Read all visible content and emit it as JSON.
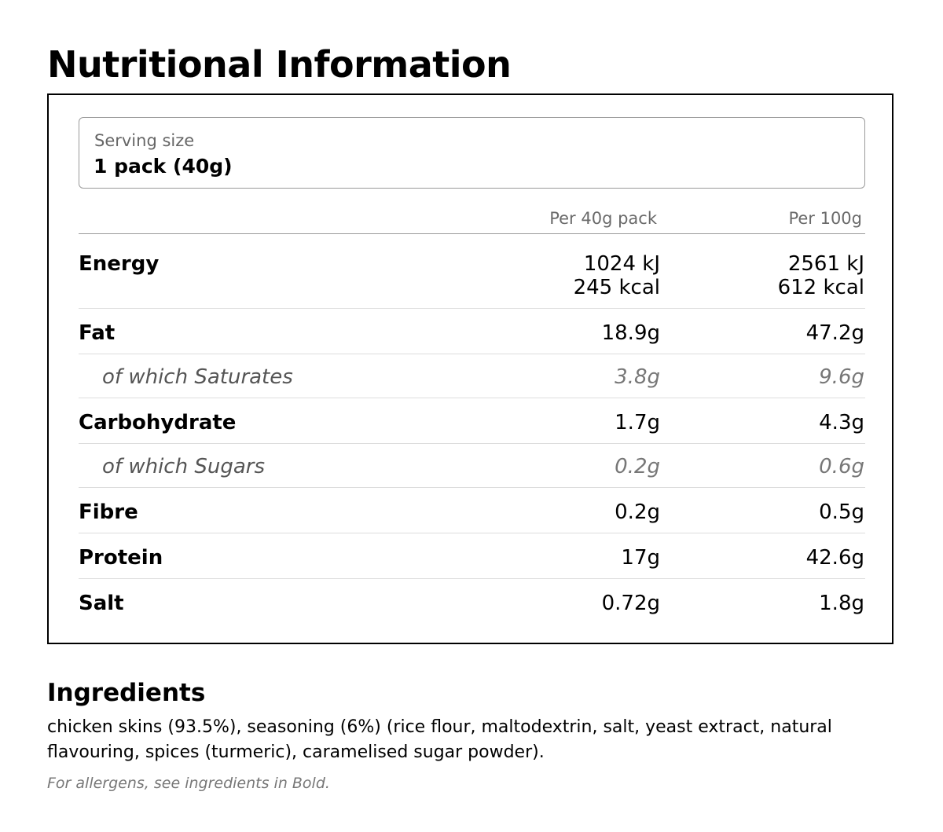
{
  "title": "Nutritional Information",
  "serving": {
    "label": "Serving size",
    "value": "1 pack (40g)"
  },
  "columns": [
    "Per 40g pack",
    "Per 100g"
  ],
  "rows": [
    {
      "name": "Energy",
      "per_pack": [
        "1024 kJ",
        "245 kcal"
      ],
      "per_100g": [
        "2561 kJ",
        "612 kcal"
      ],
      "sub": false
    },
    {
      "name": "Fat",
      "per_pack": "18.9g",
      "per_100g": "47.2g",
      "sub": false
    },
    {
      "name": "of which Saturates",
      "per_pack": "3.8g",
      "per_100g": "9.6g",
      "sub": true
    },
    {
      "name": "Carbohydrate",
      "per_pack": "1.7g",
      "per_100g": "4.3g",
      "sub": false
    },
    {
      "name": "of which Sugars",
      "per_pack": "0.2g",
      "per_100g": "0.6g",
      "sub": true
    },
    {
      "name": "Fibre",
      "per_pack": "0.2g",
      "per_100g": "0.5g",
      "sub": false
    },
    {
      "name": "Protein",
      "per_pack": "17g",
      "per_100g": "42.6g",
      "sub": false
    },
    {
      "name": "Salt",
      "per_pack": "0.72g",
      "per_100g": "1.8g",
      "sub": false
    }
  ],
  "ingredients": {
    "title": "Ingredients",
    "text": "chicken skins (93.5%), seasoning (6%) (rice flour, maltodextrin, salt, yeast extract, natural flavouring, spices (turmeric), caramelised sugar powder).",
    "allergen_note": "For allergens, see ingredients in Bold."
  }
}
